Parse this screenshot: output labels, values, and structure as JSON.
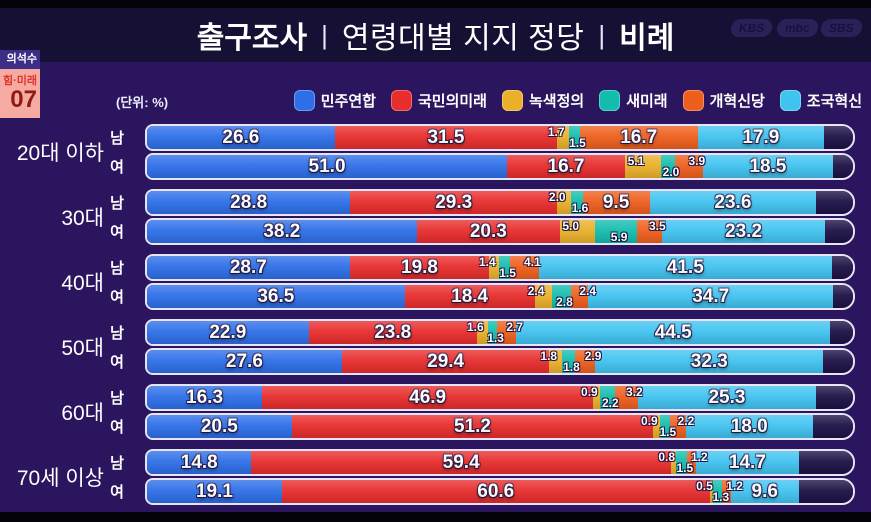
{
  "header": {
    "title_bold1": "출구조사",
    "separator": "|",
    "title_mid": "연령대별 지지 정당",
    "title_bold2": "비례",
    "broadcasters": [
      "KBS",
      "mbc",
      "SBS"
    ]
  },
  "seat_overlay": {
    "header": "의석수",
    "party": "힘·미래",
    "seats": "07"
  },
  "unit_label": "(단위: %)",
  "legend": [
    {
      "label": "민주연합",
      "color": "#2e6fe8"
    },
    {
      "label": "국민의미래",
      "color": "#e82d2d"
    },
    {
      "label": "녹색정의",
      "color": "#eab02a"
    },
    {
      "label": "새미래",
      "color": "#13bdae"
    },
    {
      "label": "개혁신당",
      "color": "#ee5f1d"
    },
    {
      "label": "조국혁신",
      "color": "#41c3f0"
    }
  ],
  "chart_data": {
    "type": "bar",
    "stacked": true,
    "orientation": "horizontal",
    "unit": "%",
    "xlim": [
      0,
      100
    ],
    "title": "출구조사 | 연령대별 지지 정당 | 비례",
    "series_names": [
      "민주연합",
      "국민의미래",
      "녹색정의",
      "새미래",
      "개혁신당",
      "조국혁신"
    ],
    "series_colors": [
      "#2e6fe8",
      "#e82d2d",
      "#eab02a",
      "#13bdae",
      "#ee5f1d",
      "#41c3f0"
    ],
    "remainder_color": "#1d1145",
    "groups": [
      {
        "age": "20대 이하",
        "rows": [
          {
            "sex": "남",
            "values": [
              26.6,
              31.5,
              1.7,
              1.5,
              16.7,
              17.9
            ]
          },
          {
            "sex": "여",
            "values": [
              51.0,
              16.7,
              5.1,
              2.0,
              3.9,
              18.5
            ]
          }
        ]
      },
      {
        "age": "30대",
        "rows": [
          {
            "sex": "남",
            "values": [
              28.8,
              29.3,
              2.0,
              1.6,
              9.5,
              23.6
            ]
          },
          {
            "sex": "여",
            "values": [
              38.2,
              20.3,
              5.0,
              5.9,
              3.5,
              23.2
            ]
          }
        ]
      },
      {
        "age": "40대",
        "rows": [
          {
            "sex": "남",
            "values": [
              28.7,
              19.8,
              1.4,
              1.5,
              4.1,
              41.5
            ]
          },
          {
            "sex": "여",
            "values": [
              36.5,
              18.4,
              2.4,
              2.8,
              2.4,
              34.7
            ]
          }
        ]
      },
      {
        "age": "50대",
        "rows": [
          {
            "sex": "남",
            "values": [
              22.9,
              23.8,
              1.6,
              1.3,
              2.7,
              44.5
            ]
          },
          {
            "sex": "여",
            "values": [
              27.6,
              29.4,
              1.8,
              1.8,
              2.9,
              32.3
            ]
          }
        ]
      },
      {
        "age": "60대",
        "rows": [
          {
            "sex": "남",
            "values": [
              16.3,
              46.9,
              0.9,
              2.2,
              3.2,
              25.3
            ]
          },
          {
            "sex": "여",
            "values": [
              20.5,
              51.2,
              0.9,
              1.5,
              2.2,
              18.0
            ]
          }
        ]
      },
      {
        "age": "70세 이상",
        "rows": [
          {
            "sex": "남",
            "values": [
              14.8,
              59.4,
              0.8,
              1.5,
              1.2,
              14.7
            ]
          },
          {
            "sex": "여",
            "values": [
              19.1,
              60.6,
              0.5,
              1.3,
              1.2,
              9.6
            ]
          }
        ]
      }
    ]
  }
}
